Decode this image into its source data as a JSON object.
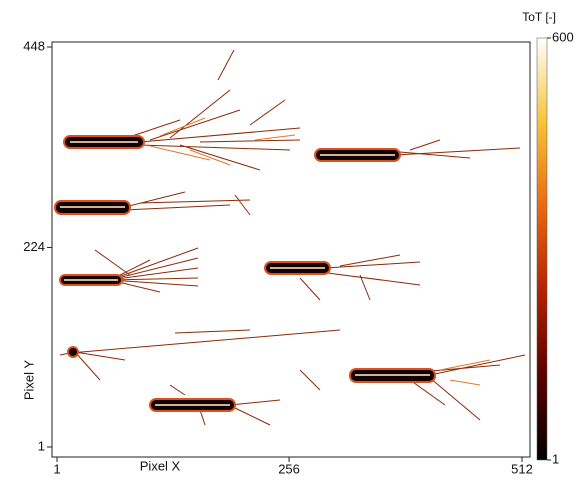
{
  "chart_data": {
    "type": "heatmap",
    "x_label": "Pixel X",
    "y_label": "Pixel Y",
    "xlim": [
      1,
      512
    ],
    "xticks": [
      1,
      256,
      512
    ],
    "ylim": [
      1,
      448
    ],
    "yticks": [
      1,
      224,
      448
    ],
    "colorbar": {
      "label": "ToT [-]",
      "lim": [
        1,
        600
      ],
      "ticks": [
        1,
        600
      ]
    },
    "colormap": [
      "#000000",
      "#5a0000",
      "#b22200",
      "#e86a10",
      "#f7c33a",
      "#ffffff"
    ]
  }
}
